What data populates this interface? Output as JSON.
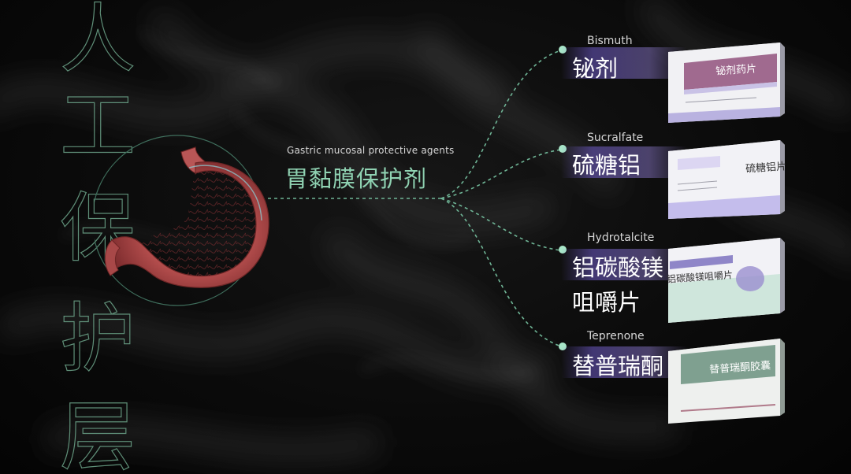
{
  "side_title": [
    "人",
    "工",
    "保",
    "护",
    "层"
  ],
  "hub": {
    "en": "Gastric mucosal protective agents",
    "zh": "胃黏膜保护剂"
  },
  "drugs": [
    {
      "en": "Bismuth",
      "zh": "铋剂",
      "box_label": "铋剂药片"
    },
    {
      "en": "Sucralfate",
      "zh": "硫糖铝",
      "box_label": "硫糖铝片"
    },
    {
      "en": "Hydrotalcite",
      "zh": "铝碳酸镁咀嚼片",
      "box_label": "铝碳酸镁咀嚼片"
    },
    {
      "en": "Teprenone",
      "zh": "替普瑞酮",
      "box_label": "替普瑞酮胶囊"
    }
  ],
  "colors": {
    "accent": "#8fd2b2",
    "line": "#6fb596",
    "node": "#a8e6c8",
    "band": "#6e5ac8"
  },
  "icons": [
    "stomach-illustration",
    "medicine-box"
  ]
}
